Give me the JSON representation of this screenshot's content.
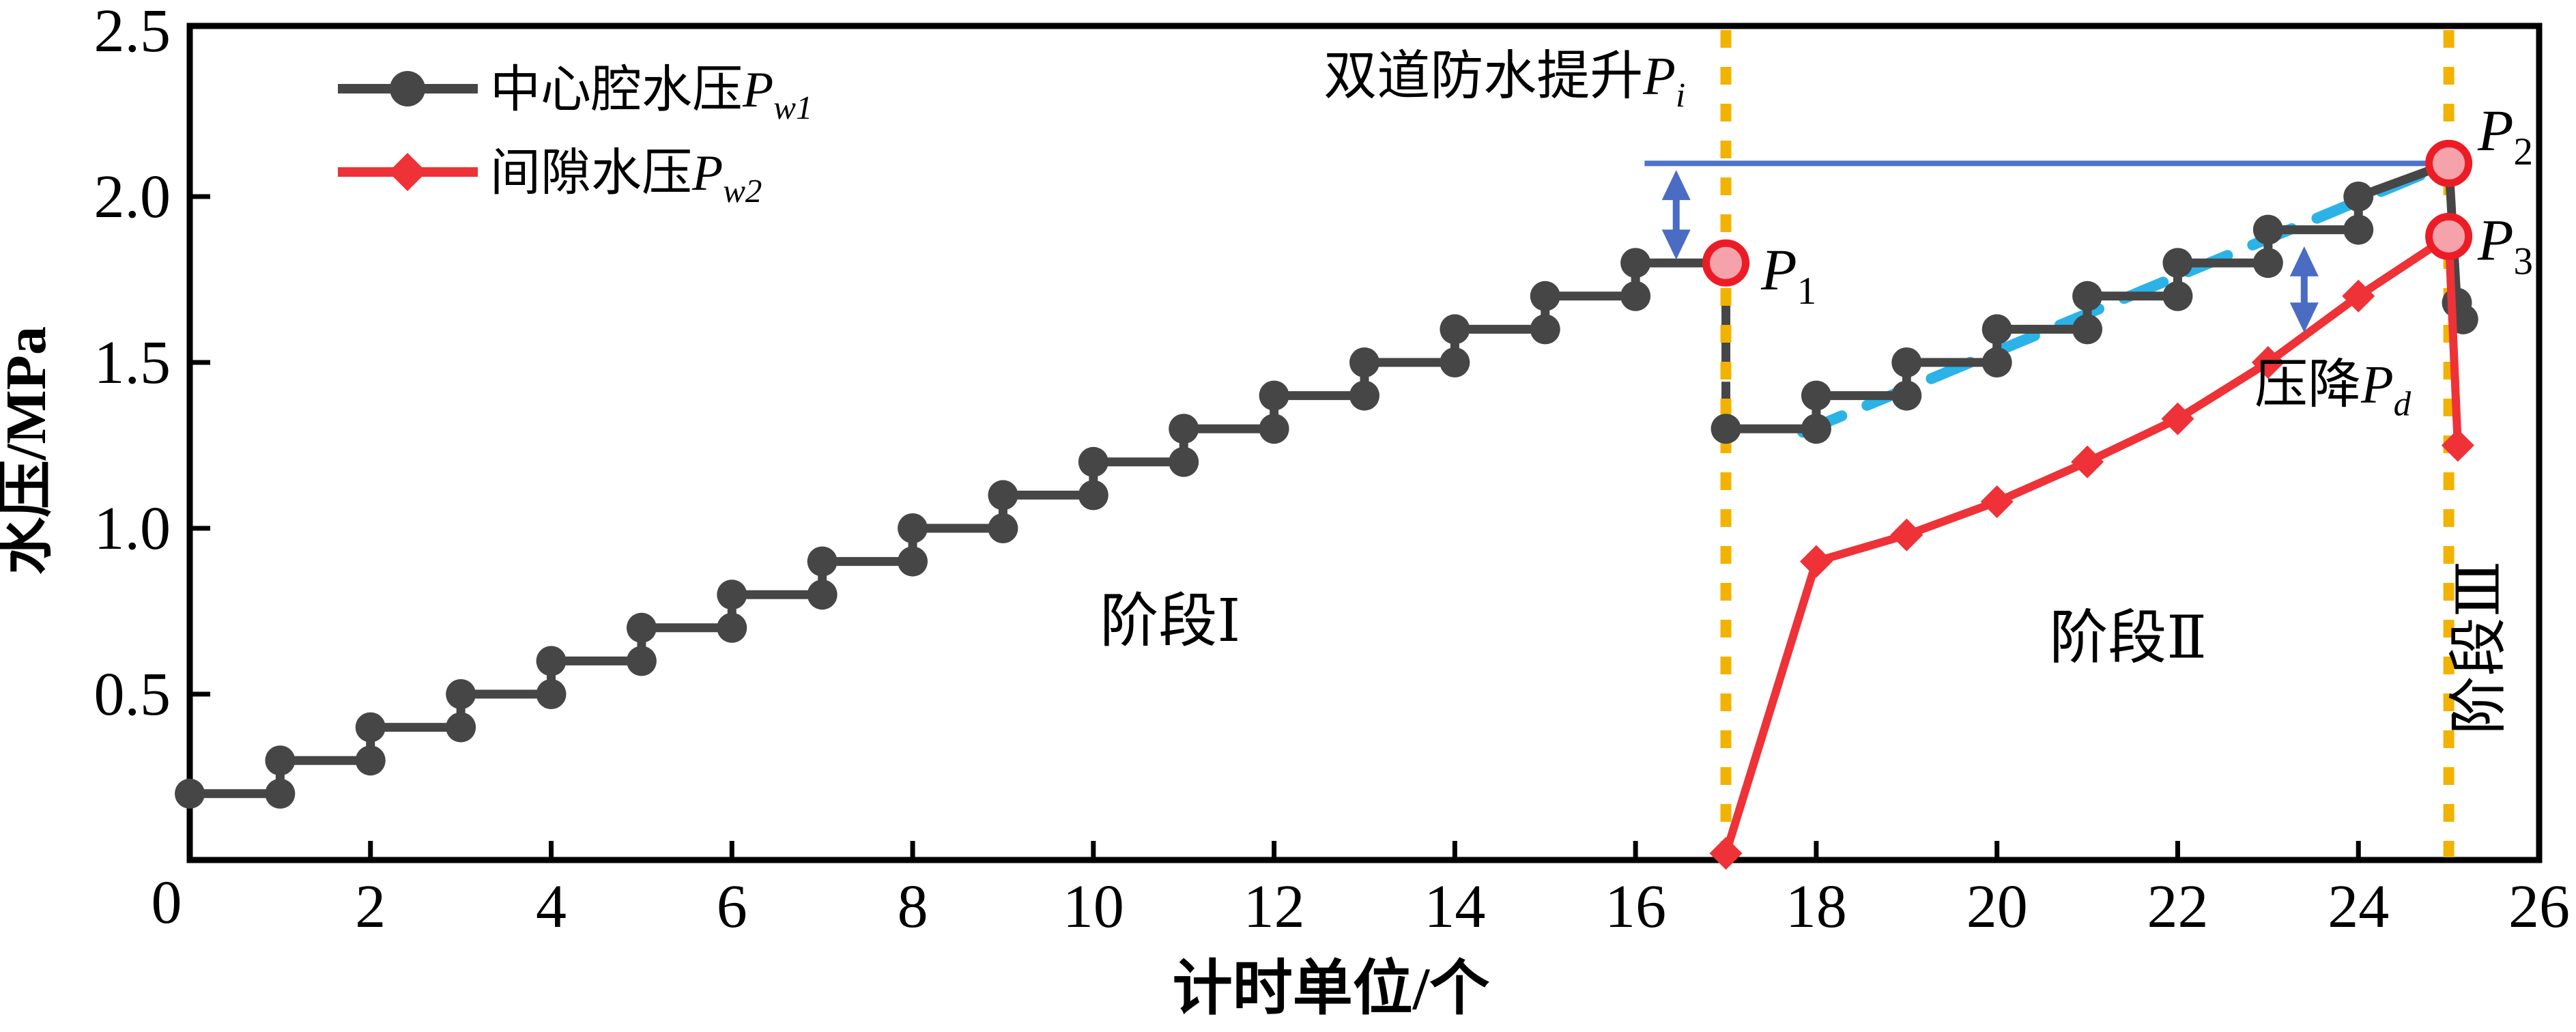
{
  "chart_data": {
    "type": "line",
    "title": "",
    "xlabel": "计时单位/个",
    "ylabel": "水压/MPa",
    "xlim": [
      0,
      26
    ],
    "ylim": [
      0,
      2.5
    ],
    "grid": false,
    "legend_position": "upper-left-inside",
    "origin_label": "0",
    "x_tick_labels": [
      {
        "v": 2,
        "t": "2"
      },
      {
        "v": 4,
        "t": "4"
      },
      {
        "v": 6,
        "t": "6"
      },
      {
        "v": 8,
        "t": "8"
      },
      {
        "v": 10,
        "t": "10"
      },
      {
        "v": 12,
        "t": "12"
      },
      {
        "v": 14,
        "t": "14"
      },
      {
        "v": 16,
        "t": "16"
      },
      {
        "v": 18,
        "t": "18"
      },
      {
        "v": 20,
        "t": "20"
      },
      {
        "v": 22,
        "t": "22"
      },
      {
        "v": 24,
        "t": "24"
      },
      {
        "v": 26,
        "t": "26"
      }
    ],
    "y_tick_labels": [
      {
        "v": 0.5,
        "t": "0.5"
      },
      {
        "v": 1.0,
        "t": "1.0"
      },
      {
        "v": 1.5,
        "t": "1.5"
      },
      {
        "v": 2.0,
        "t": "2.0"
      },
      {
        "v": 2.5,
        "t": "2.5"
      }
    ],
    "colors": {
      "pw1": "#464646",
      "pw2": "#ee3237",
      "phase_line": "#f2b300",
      "trend": "#2bb3e8",
      "reference": "#4d74c8",
      "arrow": "#4a6cc2",
      "keypoint_fill": "#f6a2ab",
      "keypoint_ring": "#ec1c26"
    },
    "legend": [
      {
        "id": "pw1",
        "marker": "circle",
        "color": "#464646",
        "parts": [
          {
            "t": "中心腔水压"
          },
          {
            "t": "P",
            "italic": true
          },
          {
            "t": "w1",
            "italic": true,
            "sub": true
          }
        ]
      },
      {
        "id": "pw2",
        "marker": "diamond",
        "color": "#ee3237",
        "parts": [
          {
            "t": "间隙水压"
          },
          {
            "t": "P",
            "italic": true
          },
          {
            "t": "w2",
            "italic": true,
            "sub": true
          }
        ]
      }
    ],
    "series": [
      {
        "id": "pw1",
        "name": "中心腔水压Pw1",
        "color": "#464646",
        "width": 13,
        "marker": "circle",
        "marker_size": 22,
        "segments": [
          {
            "pts": [
              [
                0,
                0.2
              ],
              [
                1,
                0.2
              ],
              [
                1,
                0.3
              ],
              [
                2,
                0.3
              ],
              [
                2,
                0.4
              ],
              [
                3,
                0.4
              ],
              [
                3,
                0.5
              ],
              [
                4,
                0.5
              ],
              [
                4,
                0.6
              ],
              [
                5,
                0.6
              ],
              [
                5,
                0.7
              ],
              [
                6,
                0.7
              ],
              [
                6,
                0.8
              ],
              [
                7,
                0.8
              ],
              [
                7,
                0.9
              ],
              [
                8,
                0.9
              ],
              [
                8,
                1.0
              ],
              [
                9,
                1.0
              ],
              [
                9,
                1.1
              ],
              [
                10,
                1.1
              ],
              [
                10,
                1.2
              ],
              [
                11,
                1.2
              ],
              [
                11,
                1.3
              ],
              [
                12,
                1.3
              ],
              [
                12,
                1.4
              ],
              [
                13,
                1.4
              ],
              [
                13,
                1.5
              ],
              [
                14,
                1.5
              ],
              [
                14,
                1.6
              ],
              [
                15,
                1.6
              ],
              [
                15,
                1.7
              ],
              [
                16,
                1.7
              ],
              [
                16,
                1.8
              ],
              [
                17,
                1.8
              ]
            ]
          },
          {
            "pts": [
              [
                17,
                1.3
              ],
              [
                18,
                1.3
              ],
              [
                18,
                1.4
              ],
              [
                19,
                1.4
              ],
              [
                19,
                1.5
              ],
              [
                20,
                1.5
              ],
              [
                20,
                1.6
              ],
              [
                21,
                1.6
              ],
              [
                21,
                1.7
              ],
              [
                22,
                1.7
              ],
              [
                22,
                1.8
              ],
              [
                23,
                1.8
              ],
              [
                23,
                1.9
              ],
              [
                24,
                1.9
              ],
              [
                24,
                2.0
              ],
              [
                25,
                2.1
              ]
            ]
          },
          {
            "pts": [
              [
                25,
                2.1
              ],
              [
                25.09,
                1.68
              ],
              [
                25.16,
                1.63
              ]
            ]
          }
        ],
        "marker_pts": [
          [
            0,
            0.2
          ],
          [
            1,
            0.2
          ],
          [
            1,
            0.3
          ],
          [
            2,
            0.3
          ],
          [
            2,
            0.4
          ],
          [
            3,
            0.4
          ],
          [
            3,
            0.5
          ],
          [
            4,
            0.5
          ],
          [
            4,
            0.6
          ],
          [
            5,
            0.6
          ],
          [
            5,
            0.7
          ],
          [
            6,
            0.7
          ],
          [
            6,
            0.8
          ],
          [
            7,
            0.8
          ],
          [
            7,
            0.9
          ],
          [
            8,
            0.9
          ],
          [
            8,
            1.0
          ],
          [
            9,
            1.0
          ],
          [
            9,
            1.1
          ],
          [
            10,
            1.1
          ],
          [
            10,
            1.2
          ],
          [
            11,
            1.2
          ],
          [
            11,
            1.3
          ],
          [
            12,
            1.3
          ],
          [
            12,
            1.4
          ],
          [
            13,
            1.4
          ],
          [
            13,
            1.5
          ],
          [
            14,
            1.5
          ],
          [
            14,
            1.6
          ],
          [
            15,
            1.6
          ],
          [
            15,
            1.7
          ],
          [
            16,
            1.7
          ],
          [
            16,
            1.8
          ],
          [
            17,
            1.3
          ],
          [
            18,
            1.3
          ],
          [
            18,
            1.4
          ],
          [
            19,
            1.4
          ],
          [
            19,
            1.5
          ],
          [
            20,
            1.5
          ],
          [
            20,
            1.6
          ],
          [
            21,
            1.6
          ],
          [
            21,
            1.7
          ],
          [
            22,
            1.7
          ],
          [
            22,
            1.8
          ],
          [
            23,
            1.8
          ],
          [
            23,
            1.9
          ],
          [
            24,
            1.9
          ],
          [
            24,
            2.0
          ],
          [
            25.09,
            1.68
          ],
          [
            25.16,
            1.63
          ]
        ]
      },
      {
        "id": "pw2",
        "name": "间隙水压Pw2",
        "color": "#ee3237",
        "width": 12,
        "marker": "diamond",
        "marker_size": 24,
        "segments": [
          {
            "pts": [
              [
                17,
                0.02
              ],
              [
                18,
                0.9
              ],
              [
                19,
                0.98
              ],
              [
                20,
                1.08
              ],
              [
                21,
                1.2
              ],
              [
                22,
                1.33
              ],
              [
                23,
                1.5
              ],
              [
                24,
                1.7
              ],
              [
                25,
                1.88
              ],
              [
                25.1,
                1.25
              ]
            ]
          }
        ],
        "marker_pts": [
          [
            17,
            0.02
          ],
          [
            18,
            0.9
          ],
          [
            19,
            0.98
          ],
          [
            20,
            1.08
          ],
          [
            21,
            1.2
          ],
          [
            22,
            1.33
          ],
          [
            23,
            1.5
          ],
          [
            24,
            1.7
          ],
          [
            25.1,
            1.25
          ]
        ]
      }
    ],
    "pw1_drop_segment": {
      "pts": [
        [
          17,
          1.8
        ],
        [
          17,
          1.3
        ]
      ],
      "dash": "34 24",
      "width": 13
    },
    "phase_lines": {
      "xs": [
        17,
        25
      ],
      "width": 16,
      "dash": "26 28"
    },
    "reference_line": {
      "y": 2.1,
      "x1": 16.1,
      "x2": 25,
      "width": 8
    },
    "trend_line": {
      "pts": [
        [
          17.85,
          1.29
        ],
        [
          25,
          2.1
        ]
      ],
      "width": 16,
      "dash": "62 40"
    },
    "arrows": [
      {
        "x": 16.45,
        "y1": 1.81,
        "y2": 2.08
      },
      {
        "x": 23.4,
        "y1": 1.59,
        "y2": 1.85
      }
    ],
    "key_points": [
      {
        "id": "P1",
        "x": 17,
        "y": 1.8,
        "label_parts": [
          {
            "t": "P",
            "italic": true
          },
          {
            "t": "1",
            "sub": true
          }
        ],
        "lx": 17.39,
        "ly": 1.72
      },
      {
        "id": "P2",
        "x": 25,
        "y": 2.1,
        "label_parts": [
          {
            "t": "P",
            "italic": true
          },
          {
            "t": "2",
            "sub": true
          }
        ],
        "lx": 25.32,
        "ly": 2.14
      },
      {
        "id": "P3",
        "x": 25,
        "y": 1.88,
        "label_parts": [
          {
            "t": "P",
            "italic": true
          },
          {
            "t": "3",
            "sub": true
          }
        ],
        "lx": 25.32,
        "ly": 1.81
      }
    ],
    "annotations": [
      {
        "id": "waterproof-lift",
        "parts": [
          {
            "t": "双道防水提升"
          },
          {
            "t": "P",
            "italic": true
          },
          {
            "t": "i",
            "italic": true,
            "sub": true
          }
        ],
        "x": 14.55,
        "y": 2.31,
        "anchor": "middle",
        "size": 78
      },
      {
        "id": "pressure-drop",
        "parts": [
          {
            "t": "压降"
          },
          {
            "t": "P",
            "italic": true
          },
          {
            "t": "d",
            "italic": true,
            "sub": true
          }
        ],
        "x": 22.85,
        "y": 1.38,
        "anchor": "start",
        "size": 78
      },
      {
        "id": "phase-1",
        "parts": [
          {
            "t": "阶段Ⅰ"
          }
        ],
        "x": 10.85,
        "y": 0.66,
        "anchor": "middle",
        "size": 86
      },
      {
        "id": "phase-2",
        "parts": [
          {
            "t": "阶段Ⅱ"
          }
        ],
        "x": 21.45,
        "y": 0.61,
        "anchor": "middle",
        "size": 86
      },
      {
        "id": "phase-3",
        "parts": [
          {
            "t": "阶段Ⅲ"
          }
        ],
        "x": 25.55,
        "y": 0.64,
        "anchor": "middle",
        "size": 86,
        "rotate": -90
      }
    ]
  }
}
